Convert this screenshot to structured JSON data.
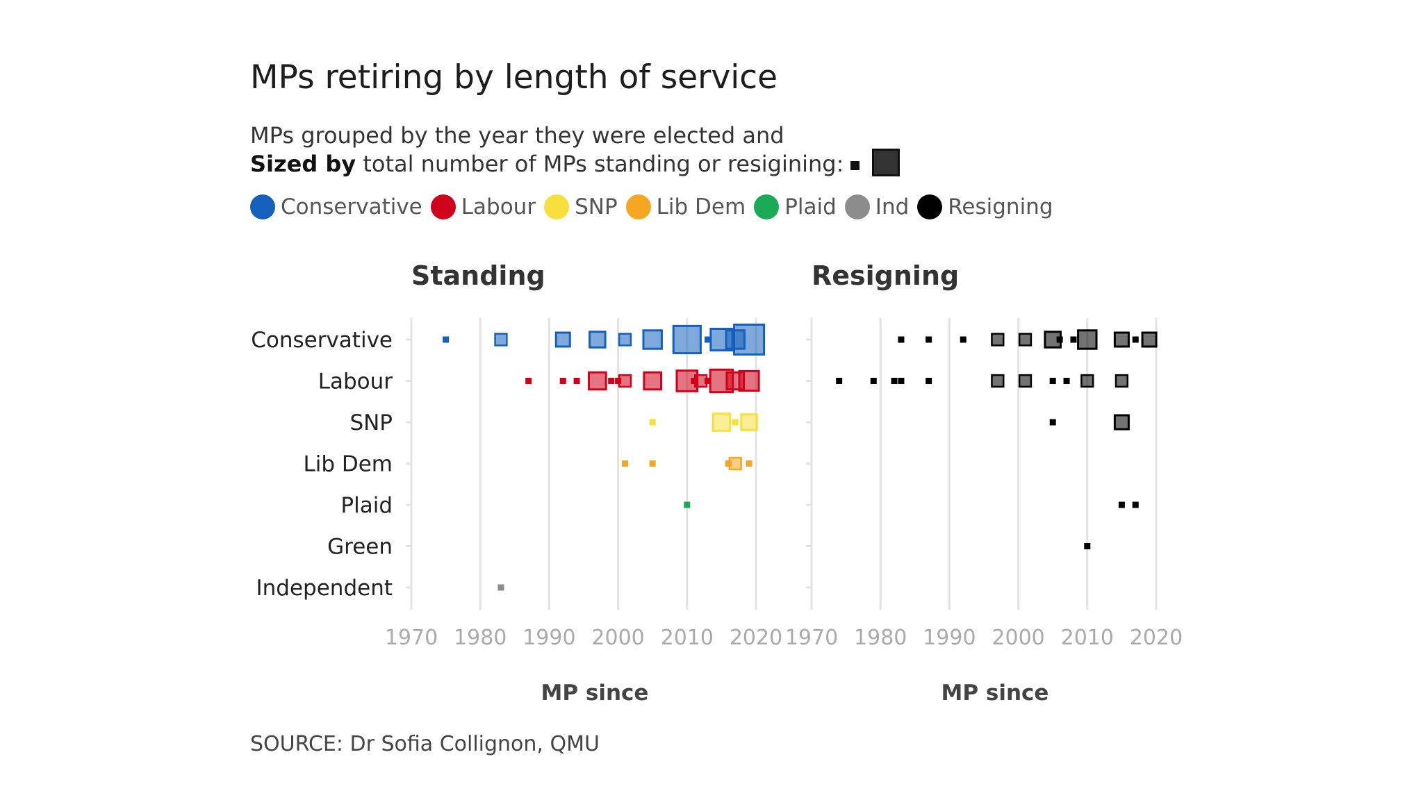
{
  "title": "MPs retiring by length of service",
  "subtitle": {
    "line1": "MPs grouped by the year they were elected and",
    "line2_bold": "Sized by",
    "line2_rest": " total number of MPs standing or resigining:"
  },
  "legend": [
    {
      "label": "Conservative",
      "color": "#1560bd"
    },
    {
      "label": "Labour",
      "color": "#d0021b"
    },
    {
      "label": "SNP",
      "color": "#f8e03c"
    },
    {
      "label": "Lib Dem",
      "color": "#f5a623"
    },
    {
      "label": "Plaid",
      "color": "#1aaa55"
    },
    {
      "label": "Ind",
      "color": "#8c8c8c"
    },
    {
      "label": "Resigning",
      "color": "#000000"
    }
  ],
  "source": "SOURCE: Dr Sofia Collignon, QMU",
  "chart_data": {
    "type": "scatter",
    "encoding": "square size = number of MPs",
    "rows": [
      "Conservative",
      "Labour",
      "SNP",
      "Lib Dem",
      "Plaid",
      "Green",
      "Independent"
    ],
    "xlim": [
      1970,
      2020
    ],
    "xticks": [
      1970,
      1980,
      1990,
      2000,
      2010,
      2020
    ],
    "xlabel": "MP since",
    "grid": true,
    "party_colors": {
      "Conservative": "#1560bd",
      "Labour": "#d0021b",
      "SNP": "#f8e03c",
      "Lib Dem": "#f5a623",
      "Plaid": "#1aaa55",
      "Green": "#1aaa55",
      "Independent": "#8c8c8c",
      "Resigning": "#000000"
    },
    "panels": [
      {
        "title": "Standing",
        "points": [
          {
            "row": "Conservative",
            "x": 1975,
            "n": 1
          },
          {
            "row": "Conservative",
            "x": 1983,
            "n": 2
          },
          {
            "row": "Conservative",
            "x": 1992,
            "n": 3
          },
          {
            "row": "Conservative",
            "x": 1997,
            "n": 4
          },
          {
            "row": "Conservative",
            "x": 2001,
            "n": 2
          },
          {
            "row": "Conservative",
            "x": 2005,
            "n": 6
          },
          {
            "row": "Conservative",
            "x": 2010,
            "n": 16
          },
          {
            "row": "Conservative",
            "x": 2013,
            "n": 1
          },
          {
            "row": "Conservative",
            "x": 2015,
            "n": 9
          },
          {
            "row": "Conservative",
            "x": 2017,
            "n": 6
          },
          {
            "row": "Conservative",
            "x": 2019,
            "n": 20
          },
          {
            "row": "Labour",
            "x": 1987,
            "n": 1
          },
          {
            "row": "Labour",
            "x": 1992,
            "n": 1
          },
          {
            "row": "Labour",
            "x": 1994,
            "n": 1
          },
          {
            "row": "Labour",
            "x": 1997,
            "n": 5
          },
          {
            "row": "Labour",
            "x": 1999,
            "n": 1
          },
          {
            "row": "Labour",
            "x": 2000,
            "n": 1
          },
          {
            "row": "Labour",
            "x": 2001,
            "n": 2
          },
          {
            "row": "Labour",
            "x": 2005,
            "n": 5
          },
          {
            "row": "Labour",
            "x": 2010,
            "n": 8
          },
          {
            "row": "Labour",
            "x": 2011,
            "n": 1
          },
          {
            "row": "Labour",
            "x": 2012,
            "n": 2
          },
          {
            "row": "Labour",
            "x": 2013,
            "n": 1
          },
          {
            "row": "Labour",
            "x": 2015,
            "n": 10
          },
          {
            "row": "Labour",
            "x": 2017,
            "n": 5
          },
          {
            "row": "Labour",
            "x": 2019,
            "n": 7
          },
          {
            "row": "SNP",
            "x": 2005,
            "n": 1
          },
          {
            "row": "SNP",
            "x": 2015,
            "n": 5
          },
          {
            "row": "SNP",
            "x": 2017,
            "n": 1
          },
          {
            "row": "SNP",
            "x": 2019,
            "n": 4
          },
          {
            "row": "Lib Dem",
            "x": 2001,
            "n": 1
          },
          {
            "row": "Lib Dem",
            "x": 2005,
            "n": 1
          },
          {
            "row": "Lib Dem",
            "x": 2016,
            "n": 1
          },
          {
            "row": "Lib Dem",
            "x": 2017,
            "n": 2
          },
          {
            "row": "Lib Dem",
            "x": 2019,
            "n": 1
          },
          {
            "row": "Plaid",
            "x": 2010,
            "n": 1
          },
          {
            "row": "Independent",
            "x": 1983,
            "n": 1
          }
        ]
      },
      {
        "title": "Resigning",
        "points": [
          {
            "row": "Conservative",
            "x": 1983,
            "n": 1
          },
          {
            "row": "Conservative",
            "x": 1987,
            "n": 1
          },
          {
            "row": "Conservative",
            "x": 1992,
            "n": 1
          },
          {
            "row": "Conservative",
            "x": 1997,
            "n": 2
          },
          {
            "row": "Conservative",
            "x": 2001,
            "n": 2
          },
          {
            "row": "Conservative",
            "x": 2005,
            "n": 4
          },
          {
            "row": "Conservative",
            "x": 2006,
            "n": 1
          },
          {
            "row": "Conservative",
            "x": 2008,
            "n": 1
          },
          {
            "row": "Conservative",
            "x": 2010,
            "n": 6
          },
          {
            "row": "Conservative",
            "x": 2015,
            "n": 3
          },
          {
            "row": "Conservative",
            "x": 2017,
            "n": 1
          },
          {
            "row": "Conservative",
            "x": 2019,
            "n": 3
          },
          {
            "row": "Labour",
            "x": 1974,
            "n": 1
          },
          {
            "row": "Labour",
            "x": 1979,
            "n": 1
          },
          {
            "row": "Labour",
            "x": 1982,
            "n": 1
          },
          {
            "row": "Labour",
            "x": 1983,
            "n": 1
          },
          {
            "row": "Labour",
            "x": 1987,
            "n": 1
          },
          {
            "row": "Labour",
            "x": 1997,
            "n": 2
          },
          {
            "row": "Labour",
            "x": 2001,
            "n": 2
          },
          {
            "row": "Labour",
            "x": 2005,
            "n": 1
          },
          {
            "row": "Labour",
            "x": 2007,
            "n": 1
          },
          {
            "row": "Labour",
            "x": 2010,
            "n": 2
          },
          {
            "row": "Labour",
            "x": 2015,
            "n": 2
          },
          {
            "row": "SNP",
            "x": 2005,
            "n": 1
          },
          {
            "row": "SNP",
            "x": 2015,
            "n": 3
          },
          {
            "row": "Plaid",
            "x": 2015,
            "n": 1
          },
          {
            "row": "Plaid",
            "x": 2017,
            "n": 1
          },
          {
            "row": "Green",
            "x": 2010,
            "n": 1
          }
        ]
      }
    ]
  }
}
